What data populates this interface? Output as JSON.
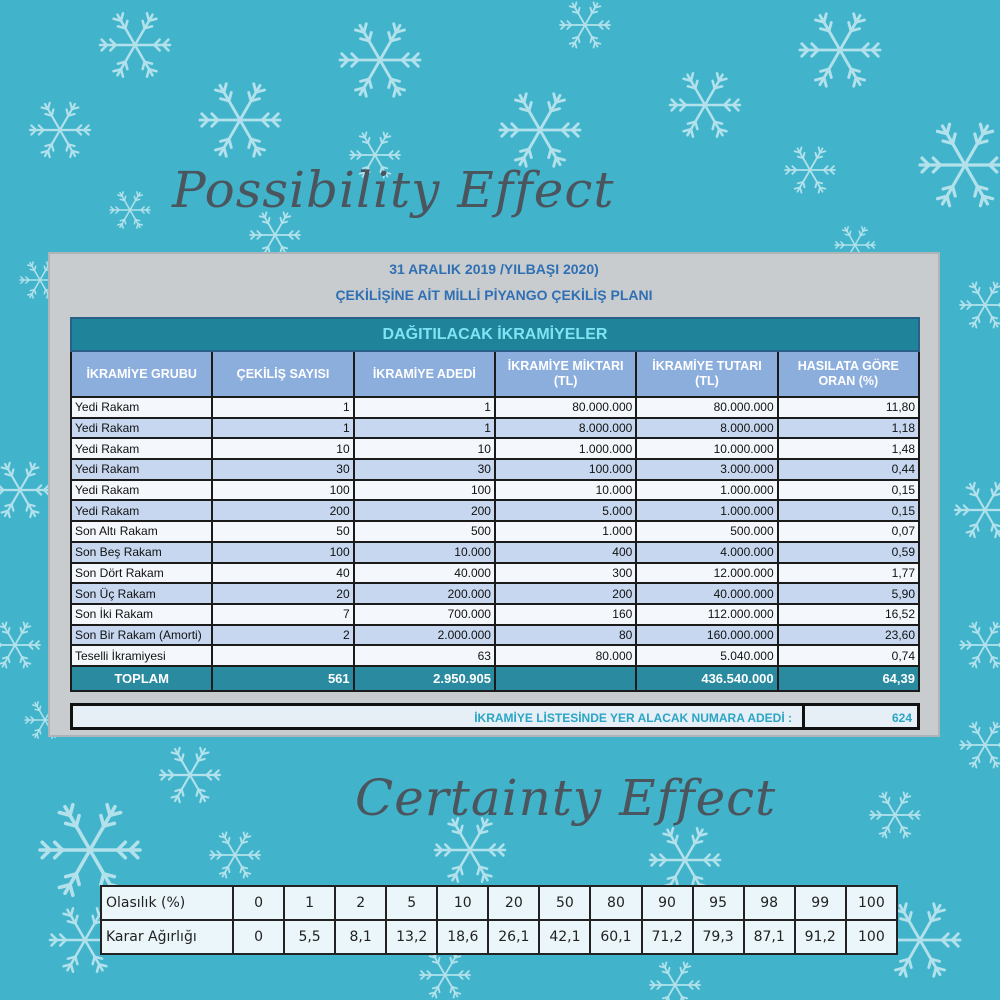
{
  "headings": {
    "possibility": "Possibility Effect",
    "certainty": "Certainty Effect"
  },
  "panel": {
    "title_line1": "31 ARALIK 2019 /YILBAŞI 2020)",
    "title_line2": "ÇEKİLİŞİNE AİT MİLLİ PİYANGO ÇEKİLİŞ PLANI"
  },
  "table": {
    "band": "DAĞITILACAK İKRAMİYELER",
    "headers": [
      "İKRAMİYE GRUBU",
      "ÇEKİLİŞ SAYISI",
      "İKRAMİYE ADEDİ",
      "İKRAMİYE MİKTARI (TL)",
      "İKRAMİYE TUTARI (TL)",
      "HASILATA GÖRE ORAN (%)"
    ],
    "rows": [
      [
        "Yedi Rakam",
        "1",
        "1",
        "80.000.000",
        "80.000.000",
        "11,80"
      ],
      [
        "Yedi Rakam",
        "1",
        "1",
        "8.000.000",
        "8.000.000",
        "1,18"
      ],
      [
        "Yedi Rakam",
        "10",
        "10",
        "1.000.000",
        "10.000.000",
        "1,48"
      ],
      [
        "Yedi Rakam",
        "30",
        "30",
        "100.000",
        "3.000.000",
        "0,44"
      ],
      [
        "Yedi Rakam",
        "100",
        "100",
        "10.000",
        "1.000.000",
        "0,15"
      ],
      [
        "Yedi Rakam",
        "200",
        "200",
        "5.000",
        "1.000.000",
        "0,15"
      ],
      [
        "Son Altı Rakam",
        "50",
        "500",
        "1.000",
        "500.000",
        "0,07"
      ],
      [
        "Son Beş Rakam",
        "100",
        "10.000",
        "400",
        "4.000.000",
        "0,59"
      ],
      [
        "Son Dört Rakam",
        "40",
        "40.000",
        "300",
        "12.000.000",
        "1,77"
      ],
      [
        "Son Üç Rakam",
        "20",
        "200.000",
        "200",
        "40.000.000",
        "5,90"
      ],
      [
        "Son İki Rakam",
        "7",
        "700.000",
        "160",
        "112.000.000",
        "16,52"
      ],
      [
        "Son Bir Rakam (Amorti)",
        "2",
        "2.000.000",
        "80",
        "160.000.000",
        "23,60"
      ],
      [
        "Teselli İkramiyesi",
        "",
        "63",
        "80.000",
        "5.040.000",
        "0,74"
      ]
    ],
    "total": [
      "TOPLAM",
      "561",
      "2.950.905",
      "",
      "436.540.000",
      "64,39"
    ],
    "footer_label": "İKRAMİYE LİSTESİNDE YER ALACAK NUMARA ADEDİ :",
    "footer_value": "624"
  },
  "weights": {
    "row1_label": "Olasılık (%)",
    "row1": [
      "0",
      "1",
      "2",
      "5",
      "10",
      "20",
      "50",
      "80",
      "90",
      "95",
      "98",
      "99",
      "100"
    ],
    "row2_label": "Karar Ağırlığı",
    "row2": [
      "0",
      "5,5",
      "8,1",
      "13,2",
      "18,6",
      "26,1",
      "42,1",
      "60,1",
      "71,2",
      "79,3",
      "87,1",
      "91,2",
      "100"
    ]
  }
}
